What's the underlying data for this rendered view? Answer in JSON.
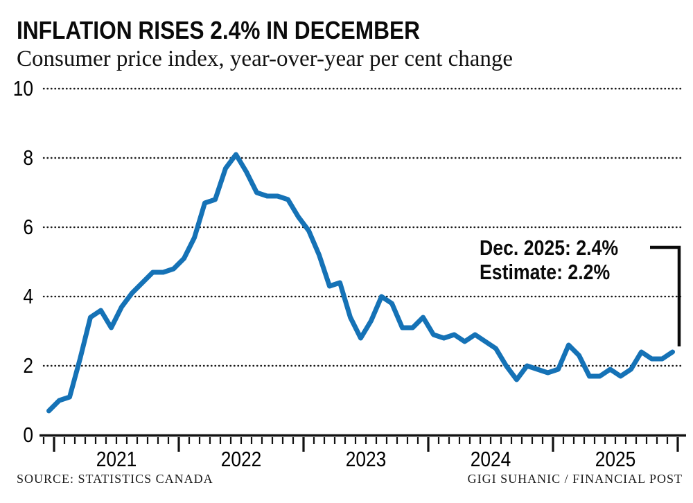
{
  "header": {
    "title": "INFLATION RISES 2.4% IN DECEMBER",
    "subtitle": "Consumer price index, year-over-year per cent change"
  },
  "annotation": {
    "line1": "Dec. 2025: 2.4%",
    "line2": "Estimate: 2.2%"
  },
  "footer": {
    "source": "SOURCE: STATISTICS CANADA",
    "credit": "GIGI SUHANIC / FINANCIAL POST"
  },
  "colors": {
    "line": "#1572b6",
    "axis": "#111111",
    "text": "#000000"
  },
  "chart_data": {
    "type": "line",
    "title": "INFLATION RISES 2.4% IN DECEMBER",
    "subtitle": "Consumer price index, year-over-year per cent change",
    "unit": "per cent",
    "ylim": [
      0,
      10
    ],
    "yticks": [
      0,
      2,
      4,
      6,
      8,
      10
    ],
    "xtick_years": [
      "2021",
      "2022",
      "2023",
      "2024",
      "2025"
    ],
    "grid": "dotted horizontal gridlines",
    "legend": "none",
    "line_color": "#1572b6",
    "series": [
      {
        "name": "Consumer price index, year-over-year % change",
        "start": "2020-12",
        "end": "2025-12",
        "frequency": "monthly",
        "values": [
          0.7,
          1.0,
          1.1,
          2.2,
          3.4,
          3.6,
          3.1,
          3.7,
          4.1,
          4.4,
          4.7,
          4.7,
          4.8,
          5.1,
          5.7,
          6.7,
          6.8,
          7.7,
          8.1,
          7.6,
          7.0,
          6.9,
          6.9,
          6.8,
          6.3,
          5.9,
          5.2,
          4.3,
          4.4,
          3.4,
          2.8,
          3.3,
          4.0,
          3.8,
          3.1,
          3.1,
          3.4,
          2.9,
          2.8,
          2.9,
          2.7,
          2.9,
          2.7,
          2.5,
          2.0,
          1.6,
          2.0,
          1.9,
          1.8,
          1.9,
          2.6,
          2.3,
          1.7,
          1.7,
          1.9,
          1.7,
          1.9,
          2.4,
          2.2,
          2.2,
          2.4
        ]
      }
    ],
    "annotations": [
      {
        "text": "Dec. 2025: 2.4%",
        "points_to": {
          "month": "2025-12",
          "value": 2.4
        }
      },
      {
        "text": "Estimate: 2.2%"
      }
    ]
  }
}
